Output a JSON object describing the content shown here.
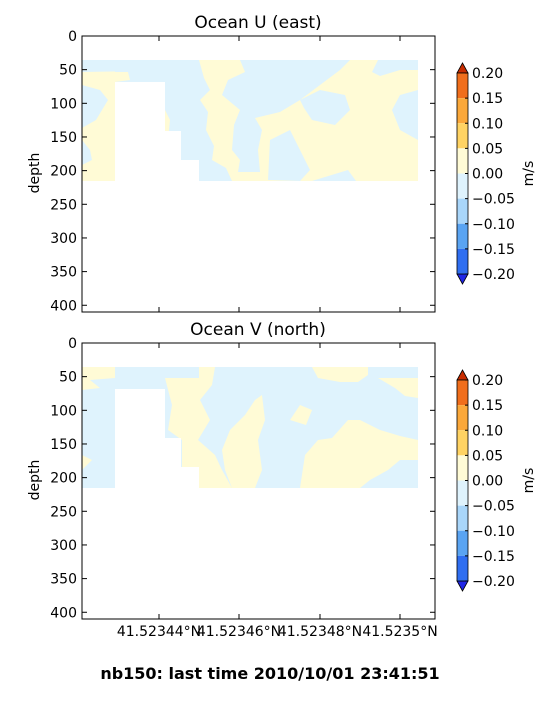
{
  "figure": {
    "footer": "nb150: last time 2010/10/01 23:41:51"
  },
  "chart_data": [
    {
      "type": "heatmap",
      "title": "Ocean U (east)",
      "xlabel": "",
      "ylabel": "depth",
      "y_ticks": [
        0,
        50,
        100,
        150,
        200,
        250,
        300,
        350,
        400
      ],
      "ylim": [
        410,
        0
      ],
      "y_inverted": true,
      "x_ticks": [],
      "colorbar": {
        "label": "m/s",
        "levels": [
          "0.20",
          "0.15",
          "0.10",
          "0.05",
          "0.00",
          "−0.05",
          "−0.10",
          "−0.15",
          "−0.20"
        ],
        "extend": "both"
      },
      "fill_colors": {
        "positive_small": "#fffbd6",
        "negative_small": "#dff3fd"
      },
      "data_depth_range": [
        35,
        215
      ],
      "summary": "Velocity values mostly within ±0.05 m/s between depths ~35 and ~215; no data below ~215."
    },
    {
      "type": "heatmap",
      "title": "Ocean V (north)",
      "xlabel": "",
      "ylabel": "depth",
      "y_ticks": [
        0,
        50,
        100,
        150,
        200,
        250,
        300,
        350,
        400
      ],
      "ylim": [
        410,
        0
      ],
      "y_inverted": true,
      "x_ticks": [
        "41.52344°N",
        "41.52346°N",
        "41.52348°N",
        "41.5235°N"
      ],
      "colorbar": {
        "label": "m/s",
        "levels": [
          "0.20",
          "0.15",
          "0.10",
          "0.05",
          "0.00",
          "−0.05",
          "−0.10",
          "−0.15",
          "−0.20"
        ],
        "extend": "both"
      },
      "fill_colors": {
        "positive_small": "#fffbd6",
        "negative_small": "#dff3fd"
      },
      "data_depth_range": [
        35,
        215
      ],
      "summary": "Velocity values mostly within ±0.05 m/s between depths ~35 and ~215; no data below ~215."
    }
  ],
  "colorbar_colors": [
    "#c82c00",
    "#f06e1c",
    "#fba83a",
    "#ffd363",
    "#fffbd6",
    "#dff3fd",
    "#a9d6fa",
    "#5aa4f2",
    "#2f6ef0",
    "#1f26e6"
  ]
}
